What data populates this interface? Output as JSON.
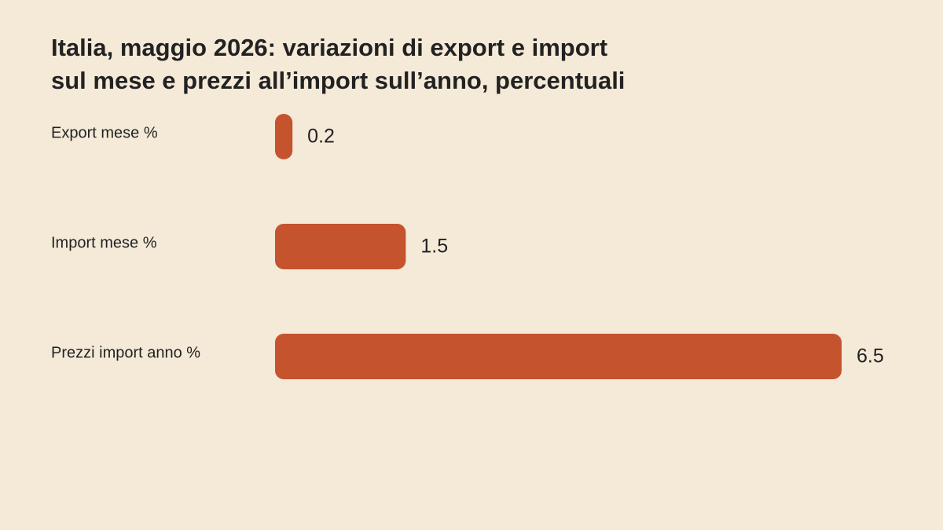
{
  "colors": {
    "background": "#f5ead8",
    "bar": "#c4532e",
    "text": "#222222"
  },
  "chart_data": {
    "type": "bar",
    "orientation": "horizontal",
    "title_lines": [
      "Italia, maggio 2026: variazioni di export e import",
      "sul mese e prezzi all’import sull’anno, percentuali"
    ],
    "categories": [
      "Export mese %",
      "Import mese %",
      "Prezzi import anno %"
    ],
    "values": [
      0.2,
      1.5,
      6.5
    ],
    "value_labels": [
      "0.2",
      "1.5",
      "6.5"
    ],
    "xlim": [
      0,
      6.5
    ],
    "grid": false,
    "legend": "none"
  }
}
